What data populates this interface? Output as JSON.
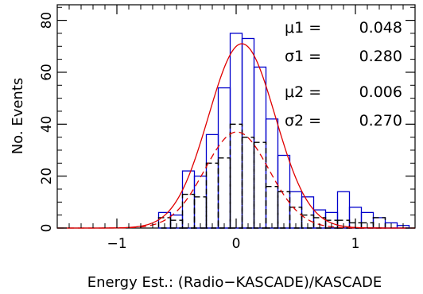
{
  "chart_data": {
    "type": "bar",
    "xlabel": "Energy Est.: (Radio−KASCADE)/KASCADE",
    "ylabel": "No. Events",
    "xlim": [
      -1.5,
      1.5
    ],
    "ylim": [
      0,
      86
    ],
    "x_ticks": [
      -1,
      0,
      1
    ],
    "x_tick_labels": [
      "−1",
      "0",
      "1"
    ],
    "y_ticks": [
      0,
      20,
      40,
      60,
      80
    ],
    "y_tick_labels": [
      "0",
      "20",
      "40",
      "60",
      "80"
    ],
    "bin_width": 0.1,
    "bin_edges": [
      -0.75,
      -0.65,
      -0.55,
      -0.45,
      -0.35,
      -0.25,
      -0.15,
      -0.05,
      0.05,
      0.15,
      0.25,
      0.35,
      0.45,
      0.55,
      0.65,
      0.75,
      0.85,
      0.95,
      1.05,
      1.15,
      1.25,
      1.35,
      1.45
    ],
    "series": [
      {
        "values": [
          0,
          6,
          5,
          22,
          20,
          36,
          54,
          75,
          73,
          62,
          42,
          28,
          14,
          12,
          7,
          6,
          14,
          8,
          6,
          4,
          2,
          1
        ],
        "color": "#0000cc",
        "style": "solid"
      },
      {
        "values": [
          0,
          4,
          3,
          13,
          12,
          25,
          27,
          40,
          35,
          33,
          16,
          14,
          8,
          5,
          4,
          3,
          3,
          2,
          2,
          4,
          0,
          0
        ],
        "color": "#000000",
        "style": "dashed"
      }
    ],
    "fits": [
      {
        "mu": 0.048,
        "sigma": 0.28,
        "amplitude": 71,
        "color": "#e00000",
        "style": "solid"
      },
      {
        "mu": 0.006,
        "sigma": 0.27,
        "amplitude": 37,
        "color": "#e00000",
        "style": "dashed"
      }
    ],
    "annotations": [
      {
        "label": "μ1  =",
        "value": "0.048"
      },
      {
        "label": "σ1  =",
        "value": "0.280"
      },
      {
        "label": "μ2  =",
        "value": "0.006"
      },
      {
        "label": "σ2  =",
        "value": "0.270"
      }
    ]
  }
}
